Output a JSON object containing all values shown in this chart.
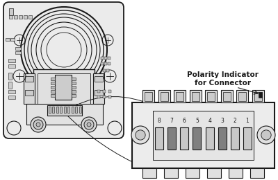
{
  "white": "#ffffff",
  "off_white": "#f5f5f5",
  "light_gray": "#d8d8d8",
  "mid_gray": "#aaaaaa",
  "dark_gray": "#666666",
  "black": "#1a1a1a",
  "pcb_face": "#ebebeb",
  "conn_face": "#e8e8e8",
  "pin_dark_face": "#808080",
  "pin_light_face": "#c8c8c8",
  "connector_pins": [
    "8",
    "7",
    "6",
    "5",
    "4",
    "3",
    "2",
    "1"
  ],
  "dark_pin_indices": [
    1,
    3,
    5
  ],
  "label_line1": "Polarity Indicator",
  "label_line2": "for Connector"
}
